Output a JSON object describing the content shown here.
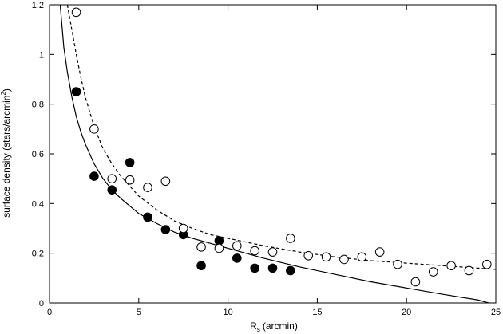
{
  "chart_data": {
    "type": "scatter",
    "title": "",
    "xlabel": "R",
    "xlabel_sub": "s",
    "xlabel_unit": "(arcmin)",
    "ylabel": "surface density (stars/arcmin",
    "ylabel_sup": "2",
    "ylabel_close": ")",
    "xlim": [
      0,
      25
    ],
    "ylim": [
      0,
      1.2
    ],
    "x_ticks": [
      0,
      5,
      10,
      15,
      20,
      25
    ],
    "x_tick_labels": [
      "0",
      "5",
      "10",
      "15",
      "20",
      "25"
    ],
    "y_ticks": [
      0,
      0.2,
      0.4,
      0.6,
      0.8,
      1,
      1.2
    ],
    "y_tick_labels": [
      "0",
      "0.2",
      "0.4",
      "0.6",
      "0.8",
      "1",
      "1.2"
    ],
    "grid": false,
    "series": [
      {
        "marker": "filled-circle",
        "color": "#000000",
        "x": [
          1.5,
          2.5,
          3.5,
          4.5,
          5.5,
          6.5,
          7.5,
          8.5,
          9.5,
          10.5,
          11.5,
          12.5,
          13.5
        ],
        "y": [
          0.85,
          0.51,
          0.455,
          0.565,
          0.345,
          0.295,
          0.275,
          0.15,
          0.25,
          0.18,
          0.14,
          0.14,
          0.13
        ]
      },
      {
        "marker": "open-circle",
        "color": "#000000",
        "x": [
          1.5,
          2.5,
          3.5,
          4.5,
          5.5,
          6.5,
          7.5,
          8.5,
          9.5,
          10.5,
          11.5,
          12.5,
          13.5,
          14.5,
          15.5,
          16.5,
          17.5,
          18.5,
          19.5,
          20.5,
          21.5,
          22.5,
          23.5,
          24.5
        ],
        "y": [
          1.17,
          0.7,
          0.5,
          0.495,
          0.465,
          0.49,
          0.3,
          0.225,
          0.22,
          0.23,
          0.21,
          0.205,
          0.26,
          0.19,
          0.185,
          0.175,
          0.185,
          0.205,
          0.155,
          0.085,
          0.125,
          0.15,
          0.13,
          0.155
        ]
      }
    ],
    "curves": [
      {
        "style": "solid",
        "color": "#000000",
        "x": [
          0.6,
          0.8,
          1.0,
          1.25,
          1.5,
          1.75,
          2.0,
          2.5,
          3.0,
          3.5,
          4.0,
          5.0,
          6.0,
          7.0,
          8.0,
          9.0,
          10.0,
          12.0,
          14.0,
          16.0,
          18.0,
          20.0,
          22.0,
          24.0,
          24.6
        ],
        "y": [
          1.2,
          1.03,
          0.93,
          0.83,
          0.75,
          0.69,
          0.64,
          0.56,
          0.5,
          0.455,
          0.42,
          0.36,
          0.32,
          0.285,
          0.26,
          0.24,
          0.22,
          0.18,
          0.145,
          0.115,
          0.085,
          0.06,
          0.035,
          0.012,
          0.0
        ]
      },
      {
        "style": "dashed",
        "color": "#000000",
        "x": [
          1.0,
          1.25,
          1.5,
          1.75,
          2.0,
          2.5,
          3.0,
          3.5,
          4.0,
          5.0,
          6.0,
          7.0,
          8.0,
          9.0,
          10.0,
          12.0,
          14.0,
          16.0,
          18.0,
          20.0,
          22.0,
          24.0,
          25.0
        ],
        "y": [
          1.2,
          1.1,
          1.0,
          0.91,
          0.83,
          0.71,
          0.62,
          0.56,
          0.51,
          0.43,
          0.375,
          0.33,
          0.3,
          0.275,
          0.26,
          0.23,
          0.205,
          0.185,
          0.17,
          0.16,
          0.15,
          0.14,
          0.135
        ]
      }
    ]
  }
}
